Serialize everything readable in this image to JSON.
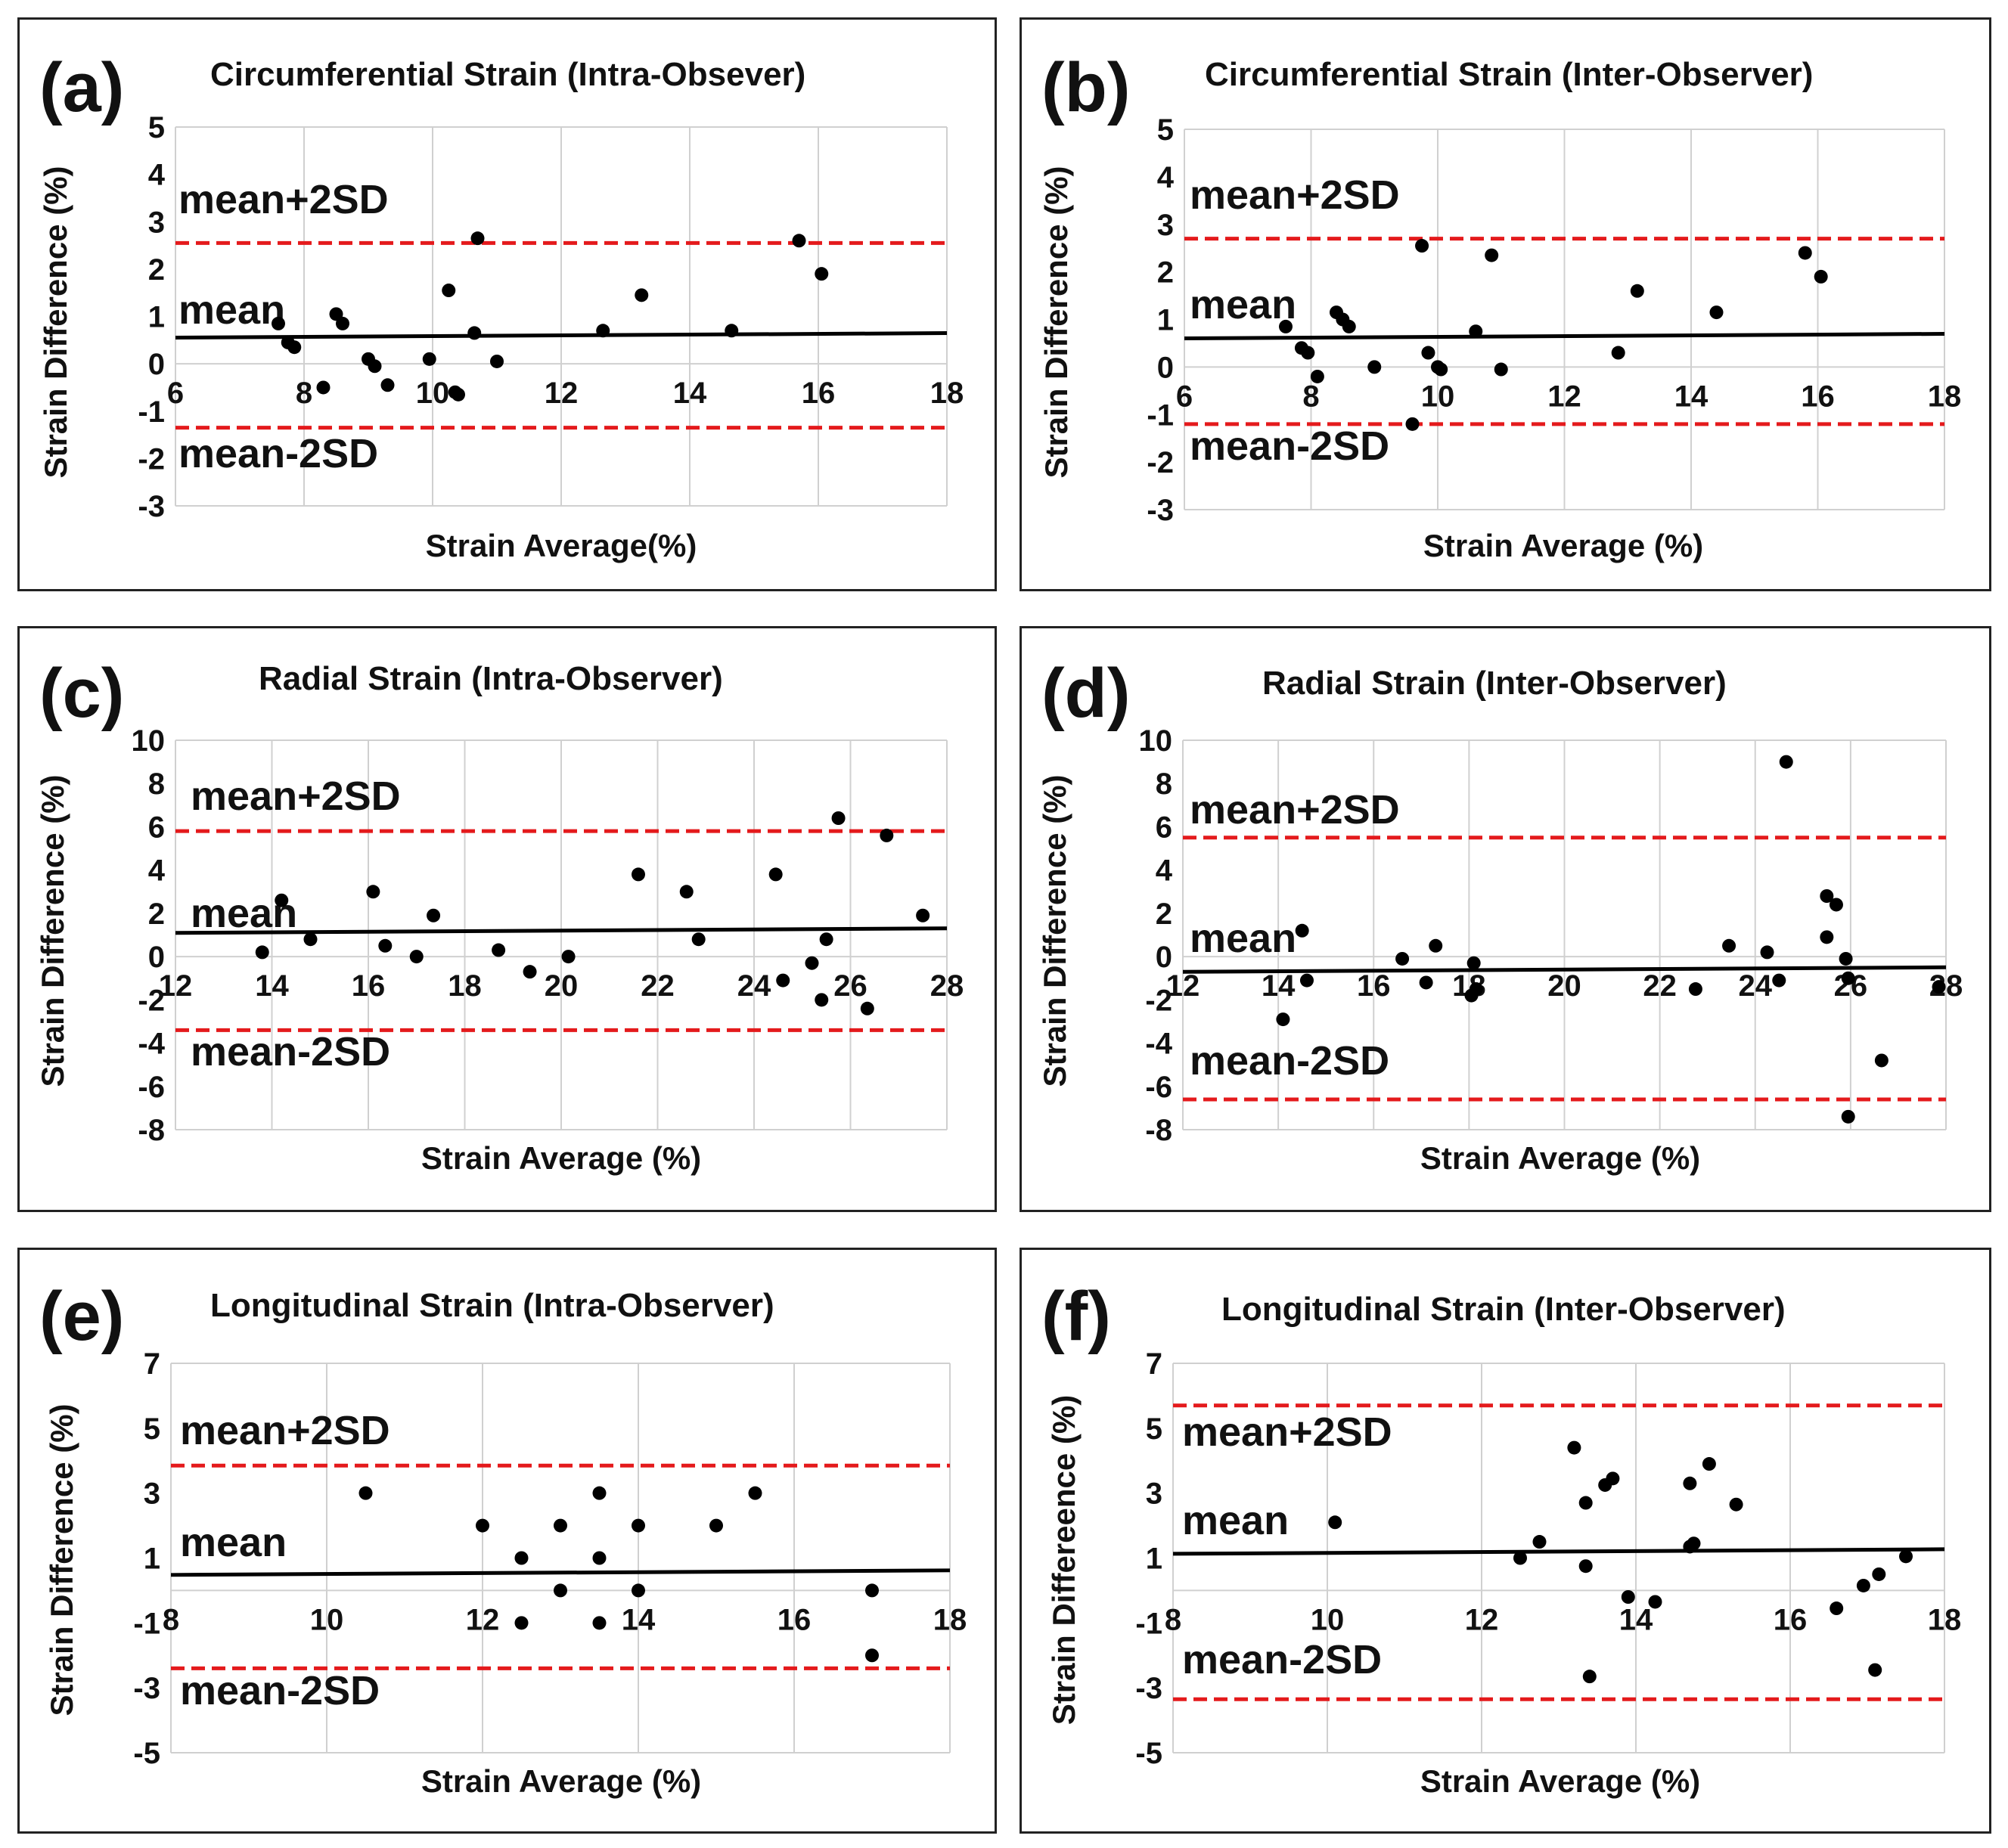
{
  "colors": {
    "mean": "#000000",
    "limits": "#e41a1c",
    "points": "#000000",
    "grid": "#d0d0d0"
  },
  "chart_data": [
    {
      "type": "scatter",
      "letter": "(a)",
      "title": "Circumferential Strain (Intra-Obsever)",
      "xlabel": "Strain Average(%)",
      "ylabel": "Strain Difference (%)",
      "xlim": [
        6,
        18
      ],
      "ylim": [
        -3,
        5
      ],
      "xticks": [
        6,
        8,
        10,
        12,
        14,
        16,
        18
      ],
      "yticks": [
        5,
        4,
        3,
        2,
        1,
        0,
        -1,
        -2,
        -3
      ],
      "grid": true,
      "mean": 0.6,
      "upper": 2.55,
      "lower": -1.35,
      "upper_label": "mean+2SD",
      "mean_label": "mean",
      "lower_label": "mean-2SD",
      "points": [
        [
          7.6,
          0.85
        ],
        [
          7.75,
          0.45
        ],
        [
          7.85,
          0.35
        ],
        [
          8.3,
          -0.5
        ],
        [
          8.5,
          1.05
        ],
        [
          8.6,
          0.85
        ],
        [
          9.0,
          0.1
        ],
        [
          9.1,
          -0.05
        ],
        [
          9.3,
          -0.45
        ],
        [
          9.95,
          0.1
        ],
        [
          10.25,
          1.55
        ],
        [
          10.35,
          -0.6
        ],
        [
          10.4,
          -0.65
        ],
        [
          10.65,
          0.65
        ],
        [
          10.7,
          2.65
        ],
        [
          11.0,
          0.05
        ],
        [
          12.65,
          0.7
        ],
        [
          13.25,
          1.45
        ],
        [
          14.65,
          0.7
        ],
        [
          15.7,
          2.6
        ],
        [
          16.05,
          1.9
        ]
      ]
    },
    {
      "type": "scatter",
      "letter": "(b)",
      "title": "Circumferential Strain (Inter-Observer)",
      "xlabel": "Strain Average (%)",
      "ylabel": "Strain Difference (%)",
      "xlim": [
        6,
        18
      ],
      "ylim": [
        -3,
        5
      ],
      "xticks": [
        6,
        8,
        10,
        12,
        14,
        16,
        18
      ],
      "yticks": [
        5,
        4,
        3,
        2,
        1,
        0,
        -1,
        -2,
        -3
      ],
      "grid": true,
      "mean": 0.65,
      "upper": 2.7,
      "lower": -1.2,
      "upper_label": "mean+2SD",
      "mean_label": "mean",
      "lower_label": "mean-2SD",
      "points": [
        [
          7.6,
          0.85
        ],
        [
          7.85,
          0.4
        ],
        [
          7.95,
          0.3
        ],
        [
          8.1,
          -0.2
        ],
        [
          8.4,
          1.15
        ],
        [
          8.5,
          1.0
        ],
        [
          8.6,
          0.85
        ],
        [
          9.0,
          0.0
        ],
        [
          9.6,
          -1.2
        ],
        [
          9.75,
          2.55
        ],
        [
          9.85,
          0.3
        ],
        [
          10.0,
          0.0
        ],
        [
          10.05,
          -0.05
        ],
        [
          10.6,
          0.75
        ],
        [
          10.85,
          2.35
        ],
        [
          11.0,
          -0.05
        ],
        [
          12.85,
          0.3
        ],
        [
          13.15,
          1.6
        ],
        [
          14.4,
          1.15
        ],
        [
          15.8,
          2.4
        ],
        [
          16.05,
          1.9
        ]
      ]
    },
    {
      "type": "scatter",
      "letter": "(c)",
      "title": "Radial Strain (Intra-Observer)",
      "xlabel": "Strain Average (%)",
      "ylabel": "Strain Difference (%)",
      "xlim": [
        12,
        28
      ],
      "ylim": [
        -8,
        10
      ],
      "xticks": [
        12,
        14,
        16,
        18,
        20,
        22,
        24,
        26,
        28
      ],
      "yticks": [
        10,
        8,
        6,
        4,
        2,
        0,
        -2,
        -4,
        -6,
        -8
      ],
      "grid": true,
      "mean": 1.2,
      "upper": 5.8,
      "lower": -3.4,
      "upper_label": "mean+2SD",
      "mean_label": "mean",
      "lower_label": "mean-2SD",
      "points": [
        [
          13.8,
          0.2
        ],
        [
          14.2,
          2.6
        ],
        [
          14.8,
          0.8
        ],
        [
          16.1,
          3.0
        ],
        [
          16.35,
          0.5
        ],
        [
          17.0,
          0.0
        ],
        [
          17.35,
          1.9
        ],
        [
          18.7,
          0.3
        ],
        [
          19.35,
          -0.7
        ],
        [
          20.15,
          0.0
        ],
        [
          21.6,
          3.8
        ],
        [
          22.6,
          3.0
        ],
        [
          22.85,
          0.8
        ],
        [
          24.45,
          3.8
        ],
        [
          24.6,
          -1.1
        ],
        [
          25.2,
          -0.3
        ],
        [
          25.4,
          -2.0
        ],
        [
          25.5,
          0.8
        ],
        [
          25.75,
          6.4
        ],
        [
          26.35,
          -2.4
        ],
        [
          26.75,
          5.6
        ],
        [
          27.5,
          1.9
        ]
      ]
    },
    {
      "type": "scatter",
      "letter": "(d)",
      "title": "Radial Strain (Inter-Observer)",
      "xlabel": "Strain Average (%)",
      "ylabel": "Strain Difference (%)",
      "xlim": [
        12,
        28
      ],
      "ylim": [
        -8,
        10
      ],
      "xticks": [
        12,
        14,
        16,
        18,
        20,
        22,
        24,
        26,
        28
      ],
      "yticks": [
        10,
        8,
        6,
        4,
        2,
        0,
        -2,
        -4,
        -6,
        -8
      ],
      "grid": true,
      "mean": -0.6,
      "upper": 5.5,
      "lower": -6.6,
      "upper_label": "mean+2SD",
      "mean_label": "mean",
      "lower_label": "mean-2SD",
      "points": [
        [
          14.1,
          -2.9
        ],
        [
          14.5,
          1.2
        ],
        [
          14.6,
          -1.1
        ],
        [
          16.6,
          -0.1
        ],
        [
          17.1,
          -1.2
        ],
        [
          17.3,
          0.5
        ],
        [
          18.05,
          -1.8
        ],
        [
          18.1,
          -0.3
        ],
        [
          18.15,
          -1.5
        ],
        [
          22.75,
          -1.5
        ],
        [
          23.45,
          0.5
        ],
        [
          24.25,
          0.2
        ],
        [
          24.5,
          -1.1
        ],
        [
          24.65,
          9.0
        ],
        [
          25.5,
          2.8
        ],
        [
          25.5,
          0.9
        ],
        [
          25.7,
          2.4
        ],
        [
          25.9,
          -0.1
        ],
        [
          25.95,
          -1.0
        ],
        [
          25.95,
          -7.4
        ],
        [
          26.65,
          -4.8
        ],
        [
          27.85,
          -1.4
        ]
      ]
    },
    {
      "type": "scatter",
      "letter": "(e)",
      "title": "Longitudinal Strain (Intra-Observer)",
      "xlabel": "Strain Average (%)",
      "ylabel": "Strain Difference (%)",
      "xlim": [
        8,
        18
      ],
      "ylim": [
        -5,
        7
      ],
      "xticks": [
        8,
        10,
        12,
        14,
        16,
        18
      ],
      "yticks": [
        7,
        5,
        3,
        1,
        -1,
        -3,
        -5
      ],
      "grid": true,
      "mean": 0.55,
      "upper": 3.85,
      "lower": -2.4,
      "upper_label": "mean+2SD",
      "mean_label": "mean",
      "lower_label": "mean-2SD",
      "points": [
        [
          10.5,
          3
        ],
        [
          12,
          2
        ],
        [
          12.5,
          1
        ],
        [
          12.5,
          -1
        ],
        [
          13,
          2
        ],
        [
          13,
          0
        ],
        [
          13.5,
          3
        ],
        [
          13.5,
          1
        ],
        [
          13.5,
          -1
        ],
        [
          14,
          2
        ],
        [
          14,
          0
        ],
        [
          15,
          2
        ],
        [
          15.5,
          3
        ],
        [
          17,
          0
        ],
        [
          17,
          -2
        ]
      ]
    },
    {
      "type": "scatter",
      "letter": "(f)",
      "title": "Longitudinal Strain (Inter-Observer)",
      "xlabel": "Strain Average (%)",
      "ylabel": "Strain Differeence (%)",
      "xlim": [
        8,
        18
      ],
      "ylim": [
        -5,
        7
      ],
      "xticks": [
        8,
        10,
        12,
        14,
        16,
        18
      ],
      "yticks": [
        7,
        5,
        3,
        1,
        -1,
        -3,
        -5
      ],
      "grid": true,
      "mean": 1.2,
      "upper": 5.7,
      "lower": -3.35,
      "upper_label": "mean+2SD",
      "mean_label": "mean",
      "lower_label": "mean-2SD",
      "points": [
        [
          10.1,
          2.1
        ],
        [
          12.5,
          1.0
        ],
        [
          12.75,
          1.5
        ],
        [
          13.2,
          4.4
        ],
        [
          13.35,
          2.7
        ],
        [
          13.35,
          0.75
        ],
        [
          13.4,
          -2.65
        ],
        [
          13.6,
          3.25
        ],
        [
          13.7,
          3.45
        ],
        [
          13.9,
          -0.2
        ],
        [
          14.25,
          -0.35
        ],
        [
          14.7,
          3.3
        ],
        [
          14.7,
          1.35
        ],
        [
          14.75,
          1.45
        ],
        [
          14.95,
          3.9
        ],
        [
          15.3,
          2.65
        ],
        [
          16.6,
          -0.55
        ],
        [
          16.95,
          0.15
        ],
        [
          17.1,
          -2.45
        ],
        [
          17.15,
          0.5
        ],
        [
          17.5,
          1.05
        ]
      ]
    }
  ]
}
